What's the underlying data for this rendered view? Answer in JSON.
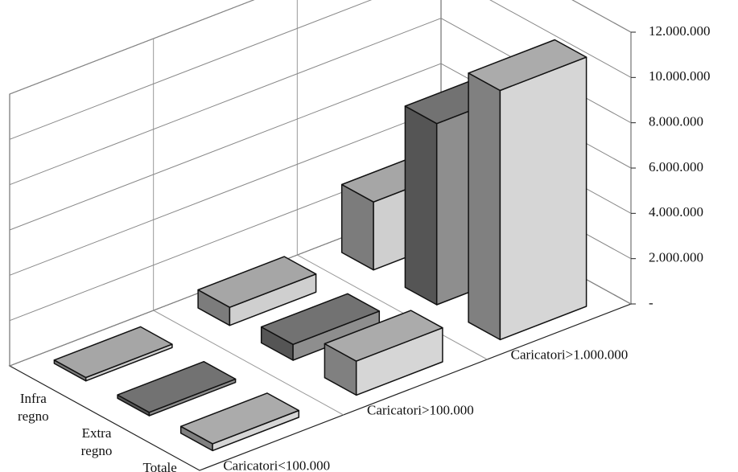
{
  "chart_data": {
    "type": "bar3d",
    "categories": [
      "Caricatori<100.000",
      "Caricatori>100.000",
      "Caricatori>1.000.000"
    ],
    "series": [
      {
        "name": "Infra regno",
        "color": "#cfcfcf",
        "values": [
          150000,
          800000,
          3000000
        ]
      },
      {
        "name": "Extra regno",
        "color": "#8e8e8e",
        "values": [
          150000,
          700000,
          8000000
        ]
      },
      {
        "name": "Totale",
        "color": "#d6d6d6",
        "values": [
          300000,
          1500000,
          11000000
        ]
      }
    ],
    "ylim": [
      0,
      12000000
    ],
    "yticks": [
      {
        "value": 0,
        "label": "-"
      },
      {
        "value": 2000000,
        "label": "2.000.000"
      },
      {
        "value": 4000000,
        "label": "4.000.000"
      },
      {
        "value": 6000000,
        "label": "6.000.000"
      },
      {
        "value": 8000000,
        "label": "8.000.000"
      },
      {
        "value": 10000000,
        "label": "10.000.000"
      },
      {
        "value": 12000000,
        "label": "12.000.000"
      }
    ],
    "grid": true
  }
}
